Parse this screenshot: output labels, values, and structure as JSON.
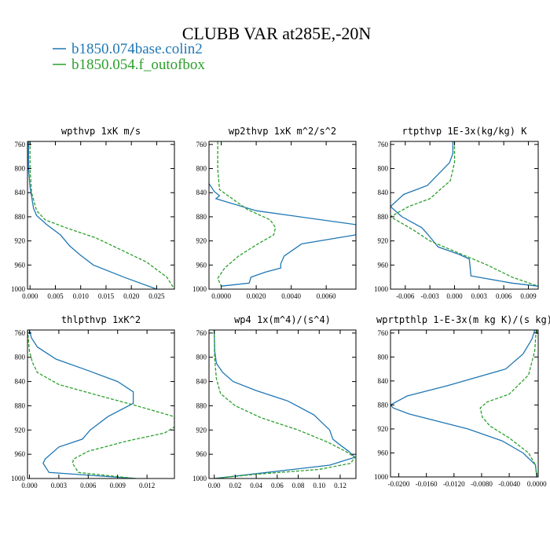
{
  "figure": {
    "title": "CLUBB VAR at285E,-20N",
    "legend": [
      {
        "label": "b1850.074base.colin2",
        "color": "#1f77b4",
        "dash": "solid"
      },
      {
        "label": "b1850.054.f_outofbox",
        "color": "#2ca02c",
        "dash": "dashed"
      }
    ],
    "colors": {
      "series_1": "#1f77b4",
      "series_2": "#2ca02c"
    }
  },
  "chart_data": [
    {
      "type": "line",
      "title": "wpthvp  1xK m/s",
      "x_ticks": [
        "0.000",
        "0.005",
        "0.010",
        "0.015",
        "0.020",
        "0.025"
      ],
      "x_tick_values": [
        0.0,
        0.005,
        0.01,
        0.015,
        0.02,
        0.025
      ],
      "y_ticks": [
        "760",
        "800",
        "840",
        "880",
        "920",
        "960",
        "1000"
      ],
      "y_tick_values": [
        760,
        800,
        840,
        880,
        920,
        960,
        1000
      ],
      "xlim": [
        -0.0005,
        0.0285
      ],
      "ylim": [
        755,
        1000
      ],
      "y_reversed": true,
      "series": [
        {
          "name": "b1850.074base.colin2",
          "x": [
            -0.0003,
            -0.0003,
            0.0,
            0.0007,
            0.0013,
            0.0033,
            0.006,
            0.0078,
            0.0097,
            0.0125,
            0.0185,
            0.025
          ],
          "y": [
            755,
            800,
            830,
            866,
            878,
            893,
            910,
            928,
            942,
            960,
            980,
            1000
          ]
        },
        {
          "name": "b1850.054.f_outofbox",
          "x": [
            0.0,
            0.0,
            0.0003,
            0.0013,
            0.003,
            0.007,
            0.013,
            0.018,
            0.023,
            0.027,
            0.0285
          ],
          "y": [
            755,
            800,
            840,
            870,
            885,
            898,
            915,
            935,
            955,
            980,
            1000
          ]
        }
      ]
    },
    {
      "type": "line",
      "title": "wp2thvp  1xK m^2/s^2",
      "x_ticks": [
        "0.0000",
        "0.0020",
        "0.0040",
        "0.0060"
      ],
      "x_tick_values": [
        0.0,
        0.002,
        0.004,
        0.006
      ],
      "y_ticks": [
        "760",
        "800",
        "840",
        "880",
        "920",
        "960",
        "1000"
      ],
      "y_tick_values": [
        760,
        800,
        840,
        880,
        920,
        960,
        1000
      ],
      "xlim": [
        -0.0007,
        0.0077
      ],
      "ylim": [
        755,
        1000
      ],
      "y_reversed": true,
      "series": [
        {
          "name": "b1850.074base.colin2",
          "x": [
            -0.0007,
            -0.0004,
            -0.0001,
            -0.0003,
            0.002,
            0.0077,
            0.0077,
            0.0046,
            0.0036,
            0.0034,
            0.0034,
            0.0025,
            0.0017,
            0.0016,
            0.0
          ],
          "y": [
            825,
            838,
            845,
            850,
            870,
            893,
            910,
            925,
            945,
            958,
            965,
            972,
            980,
            990,
            995
          ]
        },
        {
          "name": "b1850.054.f_outofbox",
          "x": [
            -0.0002,
            -0.0002,
            -0.0001,
            0.0015,
            0.0028,
            0.0031,
            0.003,
            0.0021,
            0.001,
            0.0002,
            -0.0002,
            0.0
          ],
          "y": [
            755,
            800,
            835,
            868,
            885,
            898,
            910,
            925,
            945,
            965,
            982,
            995
          ]
        }
      ]
    },
    {
      "type": "line",
      "title": "rtpthvp  1E-3x(kg/kg) K",
      "x_ticks": [
        "-0.006",
        "-0.003",
        "0.000",
        "0.003",
        "0.006",
        "0.009"
      ],
      "x_tick_values": [
        -0.006,
        -0.003,
        0.0,
        0.003,
        0.006,
        0.009
      ],
      "y_ticks": [
        "760",
        "800",
        "840",
        "880",
        "920",
        "960",
        "1000"
      ],
      "y_tick_values": [
        760,
        800,
        840,
        880,
        920,
        960,
        1000
      ],
      "xlim": [
        -0.0078,
        0.0102
      ],
      "ylim": [
        755,
        1000
      ],
      "y_reversed": true,
      "series": [
        {
          "name": "b1850.074base.colin2",
          "x": [
            -0.0002,
            -0.0002,
            -0.0006,
            -0.0033,
            -0.0062,
            -0.0078,
            -0.0064,
            -0.004,
            -0.0032,
            -0.002,
            0.0005,
            0.0018,
            0.002,
            0.007,
            0.0102
          ],
          "y": [
            755,
            775,
            790,
            828,
            843,
            863,
            880,
            898,
            910,
            930,
            942,
            950,
            978,
            990,
            995
          ]
        },
        {
          "name": "b1850.054.f_outofbox",
          "x": [
            0.0,
            0.0,
            -0.0005,
            -0.003,
            -0.0056,
            -0.0078,
            -0.005,
            -0.003,
            0.0005,
            0.004,
            0.007,
            0.0102
          ],
          "y": [
            755,
            790,
            820,
            850,
            863,
            880,
            902,
            920,
            940,
            960,
            980,
            995
          ]
        }
      ]
    },
    {
      "type": "line",
      "title": "thlpthvp  1xK^2",
      "x_ticks": [
        "0.000",
        "0.003",
        "0.006",
        "0.009",
        "0.012"
      ],
      "x_tick_values": [
        0.0,
        0.003,
        0.006,
        0.009,
        0.012
      ],
      "y_ticks": [
        "760",
        "800",
        "840",
        "880",
        "920",
        "960",
        "1000"
      ],
      "y_tick_values": [
        760,
        800,
        840,
        880,
        920,
        960,
        1000
      ],
      "xlim": [
        -0.0002,
        0.0148
      ],
      "ylim": [
        755,
        1000
      ],
      "y_reversed": true,
      "series": [
        {
          "name": "b1850.074base.colin2",
          "x": [
            0.0,
            0.0002,
            0.0008,
            0.0027,
            0.006,
            0.009,
            0.0106,
            0.0106,
            0.008,
            0.0062,
            0.0054,
            0.003,
            0.0016,
            0.0014,
            0.002,
            0.0109
          ],
          "y": [
            755,
            768,
            783,
            803,
            822,
            840,
            857,
            876,
            898,
            920,
            935,
            948,
            968,
            975,
            990,
            1000
          ]
        },
        {
          "name": "b1850.054.f_outofbox",
          "x": [
            -0.0002,
            0.0,
            0.0003,
            0.0008,
            0.003,
            0.0075,
            0.0105,
            0.0148,
            0.0148,
            0.0138,
            0.01,
            0.006,
            0.0045,
            0.0044,
            0.005,
            0.0108
          ],
          "y": [
            755,
            790,
            808,
            825,
            845,
            865,
            878,
            898,
            915,
            925,
            938,
            955,
            968,
            975,
            990,
            1000
          ]
        }
      ]
    },
    {
      "type": "line",
      "title": "wp4  1x(m^4)/(s^4)",
      "x_ticks": [
        "0.00",
        "0.02",
        "0.04",
        "0.06",
        "0.08",
        "0.10",
        "0.12"
      ],
      "x_tick_values": [
        0.0,
        0.02,
        0.04,
        0.06,
        0.08,
        0.1,
        0.12
      ],
      "y_ticks": [
        "760",
        "800",
        "840",
        "880",
        "920",
        "960",
        "1000"
      ],
      "y_tick_values": [
        760,
        800,
        840,
        880,
        920,
        960,
        1000
      ],
      "xlim": [
        -0.005,
        0.135
      ],
      "ylim": [
        755,
        1000
      ],
      "y_reversed": true,
      "series": [
        {
          "name": "b1850.074base.colin2",
          "x": [
            0.0,
            0.0005,
            0.002,
            0.008,
            0.018,
            0.04,
            0.07,
            0.095,
            0.11,
            0.113,
            0.118,
            0.128,
            0.134,
            0.11,
            0.05,
            0.0
          ],
          "y": [
            755,
            790,
            810,
            825,
            840,
            855,
            872,
            895,
            920,
            935,
            942,
            955,
            965,
            978,
            990,
            1000
          ]
        },
        {
          "name": "b1850.054.f_outofbox",
          "x": [
            0.0,
            0.0003,
            0.002,
            0.006,
            0.02,
            0.045,
            0.08,
            0.108,
            0.125,
            0.134,
            0.13,
            0.1,
            0.04,
            0.0
          ],
          "y": [
            755,
            800,
            835,
            860,
            880,
            900,
            920,
            940,
            955,
            965,
            975,
            985,
            993,
            1000
          ]
        }
      ]
    },
    {
      "type": "line",
      "title": "wprtpthlp  1-E-3x(m kg K)/(s kg)",
      "x_ticks": [
        "-0.0200",
        "-0.0160",
        "-0.0120",
        "-0.0080",
        "-0.0040",
        "0.0000"
      ],
      "x_tick_values": [
        -0.02,
        -0.016,
        -0.012,
        -0.008,
        -0.004,
        0.0
      ],
      "y_ticks": [
        "760",
        "800",
        "840",
        "880",
        "920",
        "960",
        "1000"
      ],
      "y_tick_values": [
        760,
        800,
        840,
        880,
        920,
        960,
        1000
      ],
      "xlim": [
        -0.0212,
        0.0002
      ],
      "ylim": [
        755,
        1000
      ],
      "y_reversed": true,
      "series": [
        {
          "name": "b1850.074base.colin2",
          "x": [
            -0.0003,
            -0.0007,
            -0.002,
            -0.0045,
            -0.013,
            -0.0188,
            -0.0212,
            -0.0208,
            -0.0185,
            -0.01,
            -0.005,
            -0.002,
            -0.0002,
            0.0
          ],
          "y": [
            755,
            770,
            795,
            820,
            848,
            865,
            880,
            885,
            895,
            920,
            940,
            960,
            980,
            1000
          ]
        },
        {
          "name": "b1850.054.f_outofbox",
          "x": [
            -0.0001,
            -0.0003,
            -0.0012,
            -0.004,
            -0.0072,
            -0.0082,
            -0.0079,
            -0.0068,
            -0.004,
            -0.0012,
            -0.0002,
            0.0
          ],
          "y": [
            755,
            790,
            830,
            862,
            875,
            885,
            900,
            915,
            935,
            960,
            980,
            1000
          ]
        }
      ]
    }
  ]
}
